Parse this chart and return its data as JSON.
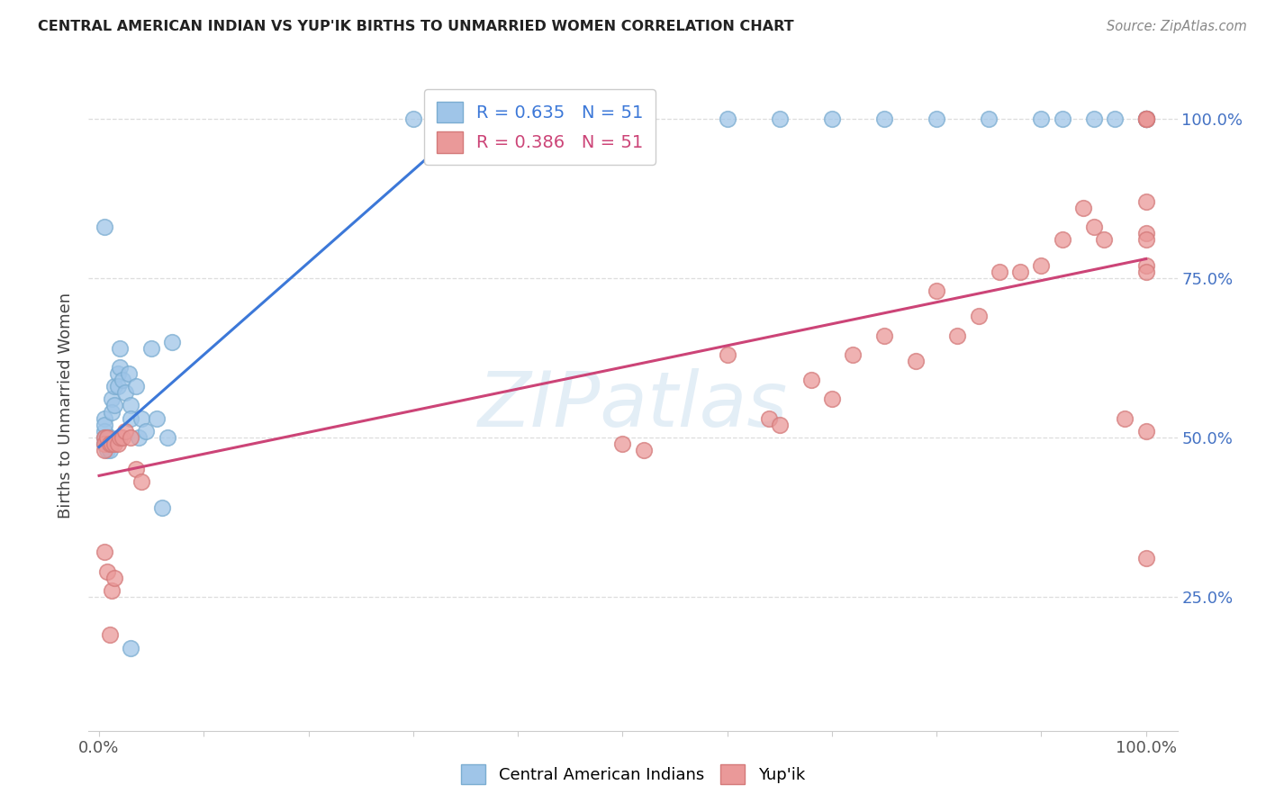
{
  "title": "CENTRAL AMERICAN INDIAN VS YUP'IK BIRTHS TO UNMARRIED WOMEN CORRELATION CHART",
  "source": "Source: ZipAtlas.com",
  "ylabel": "Births to Unmarried Women",
  "legend_label_blue": "Central American Indians",
  "legend_label_pink": "Yup'ik",
  "R_blue": 0.635,
  "N_blue": 51,
  "R_pink": 0.386,
  "N_pink": 51,
  "blue_color": "#9fc5e8",
  "pink_color": "#ea9999",
  "blue_line_color": "#3c78d8",
  "pink_line_color": "#cc4477",
  "blue_scatter_edge": "#7badd1",
  "pink_scatter_edge": "#d47a7a",
  "bg_color": "#ffffff",
  "grid_color": "#dddddd",
  "right_tick_color": "#4472c4",
  "title_color": "#222222",
  "source_color": "#888888",
  "watermark_color": "#cde0f0",
  "blue_x": [
    0.005,
    0.005,
    0.005,
    0.005,
    0.005,
    0.008,
    0.008,
    0.008,
    0.01,
    0.01,
    0.012,
    0.012,
    0.015,
    0.015,
    0.018,
    0.018,
    0.02,
    0.02,
    0.022,
    0.025,
    0.028,
    0.03,
    0.03,
    0.035,
    0.038,
    0.04,
    0.045,
    0.05,
    0.055,
    0.06,
    0.005,
    0.07,
    0.03,
    0.065,
    0.3,
    0.32,
    0.6,
    0.65,
    0.7,
    0.75,
    0.8,
    0.85,
    0.9,
    0.92,
    0.95,
    0.97,
    1.0,
    1.0,
    1.0,
    1.0,
    1.0
  ],
  "blue_y": [
    0.53,
    0.51,
    0.49,
    0.52,
    0.5,
    0.5,
    0.49,
    0.48,
    0.5,
    0.48,
    0.56,
    0.54,
    0.58,
    0.55,
    0.6,
    0.58,
    0.64,
    0.61,
    0.59,
    0.57,
    0.6,
    0.55,
    0.53,
    0.58,
    0.5,
    0.53,
    0.51,
    0.64,
    0.53,
    0.39,
    0.83,
    0.65,
    0.17,
    0.5,
    1.0,
    1.0,
    1.0,
    1.0,
    1.0,
    1.0,
    1.0,
    1.0,
    1.0,
    1.0,
    1.0,
    1.0,
    1.0,
    1.0,
    1.0,
    1.0,
    1.0
  ],
  "pink_x": [
    0.005,
    0.005,
    0.005,
    0.008,
    0.01,
    0.012,
    0.015,
    0.018,
    0.02,
    0.022,
    0.025,
    0.03,
    0.035,
    0.04,
    0.5,
    0.52,
    0.6,
    0.64,
    0.65,
    0.68,
    0.7,
    0.72,
    0.75,
    0.78,
    0.8,
    0.82,
    0.84,
    0.86,
    0.88,
    0.9,
    0.92,
    0.94,
    0.95,
    0.96,
    0.98,
    1.0,
    1.0,
    1.0,
    1.0,
    1.0,
    1.0,
    1.0,
    1.0,
    1.0,
    1.0,
    1.0,
    0.005,
    0.008,
    0.01,
    0.012,
    0.015
  ],
  "pink_y": [
    0.5,
    0.49,
    0.48,
    0.5,
    0.49,
    0.49,
    0.49,
    0.49,
    0.5,
    0.5,
    0.51,
    0.5,
    0.45,
    0.43,
    0.49,
    0.48,
    0.63,
    0.53,
    0.52,
    0.59,
    0.56,
    0.63,
    0.66,
    0.62,
    0.73,
    0.66,
    0.69,
    0.76,
    0.76,
    0.77,
    0.81,
    0.86,
    0.83,
    0.81,
    0.53,
    0.82,
    0.87,
    1.0,
    1.0,
    1.0,
    1.0,
    0.77,
    0.81,
    0.76,
    0.31,
    0.51,
    0.32,
    0.29,
    0.19,
    0.26,
    0.28
  ],
  "blue_line": {
    "x0": 0.0,
    "x1": 0.37,
    "y0": 0.485,
    "y1": 1.02
  },
  "pink_line": {
    "x0": 0.0,
    "x1": 1.0,
    "y0": 0.44,
    "y1": 0.78
  },
  "xlim": [
    -0.01,
    1.03
  ],
  "ylim": [
    0.04,
    1.06
  ],
  "xticks": [
    0.0,
    0.1,
    0.2,
    0.3,
    0.4,
    0.5,
    0.6,
    0.7,
    0.8,
    0.9,
    1.0
  ],
  "xticklabels": [
    "0.0%",
    "",
    "",
    "",
    "",
    "",
    "",
    "",
    "",
    "",
    "100.0%"
  ],
  "ytick_positions": [
    0.25,
    0.5,
    0.75,
    1.0
  ],
  "ytick_labels": [
    "25.0%",
    "50.0%",
    "75.0%",
    "100.0%"
  ]
}
